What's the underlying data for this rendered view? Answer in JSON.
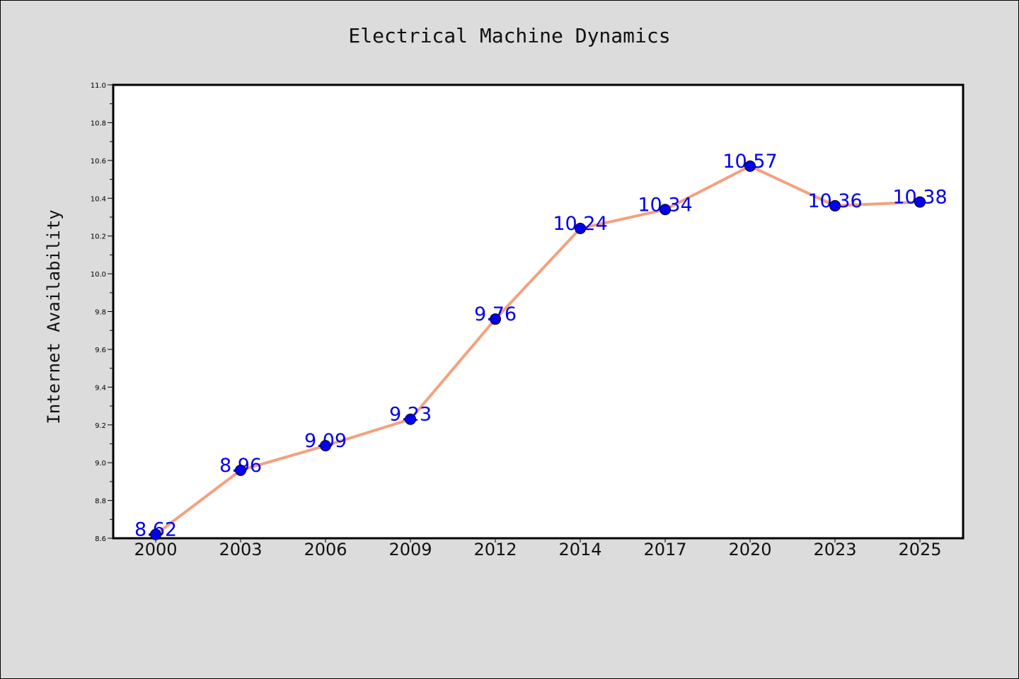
{
  "chart_data": {
    "type": "line",
    "title": "Electrical Machine Dynamics",
    "xlabel": "",
    "ylabel": "Internet Availability",
    "categories": [
      "2000",
      "2003",
      "2006",
      "2009",
      "2012",
      "2014",
      "2017",
      "2020",
      "2023",
      "2025"
    ],
    "series": [
      {
        "values": [
          8.62,
          8.96,
          9.09,
          9.23,
          9.76,
          10.24,
          10.34,
          10.57,
          10.36,
          10.38
        ],
        "data_labels": [
          "8.62",
          "8.96",
          "9.09",
          "9.23",
          "9.76",
          "10.24",
          "10.34",
          "10.57",
          "10.36",
          "10.38"
        ],
        "line_color": "#f4a07f",
        "marker_color": "#0000ee",
        "label_color": "#0000ee"
      }
    ],
    "ylim": [
      8.6,
      11.0
    ],
    "yticks": [
      "8.6",
      "8.8",
      "9.0",
      "9.2",
      "9.4",
      "9.6",
      "9.8",
      "10.0",
      "10.2",
      "10.4",
      "10.6",
      "10.8",
      "11.0"
    ],
    "grid": false,
    "legend": "none",
    "background_color": "#dcdcdc",
    "plot_background_color": "#ffffff"
  }
}
